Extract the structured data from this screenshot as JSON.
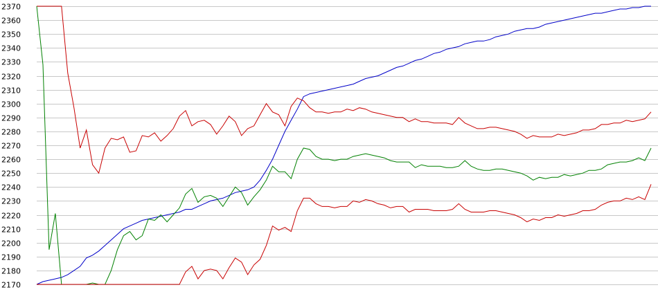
{
  "chart_data": {
    "type": "line",
    "title": "",
    "xlabel": "",
    "ylabel": "",
    "ylim": [
      2170,
      2370
    ],
    "yticks": [
      2170,
      2180,
      2190,
      2200,
      2210,
      2220,
      2230,
      2240,
      2250,
      2260,
      2270,
      2280,
      2290,
      2300,
      2310,
      2320,
      2330,
      2340,
      2350,
      2360,
      2370
    ],
    "grid": true,
    "legend": "none",
    "n_points": 100,
    "series": [
      {
        "color": "#0000c8",
        "values": [
          2170,
          2172,
          2173,
          2174,
          2175,
          2177,
          2180,
          2183,
          2189,
          2191,
          2194,
          2198,
          2202,
          2206,
          2210,
          2212,
          2214,
          2216,
          2217,
          2218,
          2219,
          2220,
          2221,
          2222,
          2224,
          2224,
          2226,
          2228,
          2230,
          2231,
          2232,
          2234,
          2236,
          2237,
          2238,
          2240,
          2245,
          2252,
          2260,
          2270,
          2280,
          2288,
          2296,
          2305,
          2307,
          2308,
          2309,
          2310,
          2311,
          2312,
          2313,
          2314,
          2316,
          2318,
          2319,
          2320,
          2322,
          2324,
          2326,
          2327,
          2329,
          2331,
          2332,
          2334,
          2336,
          2337,
          2339,
          2340,
          2341,
          2343,
          2344,
          2345,
          2345,
          2346,
          2348,
          2349,
          2350,
          2352,
          2353,
          2354,
          2354,
          2355,
          2357,
          2358,
          2359,
          2360,
          2361,
          2362,
          2363,
          2364,
          2365,
          2365,
          2366,
          2367,
          2368,
          2368,
          2369,
          2369,
          2370,
          2370
        ]
      },
      {
        "color": "#c80000",
        "values": [
          2370,
          2370,
          2370,
          2370,
          2370,
          2322,
          2297,
          2268,
          2281,
          2256,
          2250,
          2268,
          2275,
          2274,
          2276,
          2265,
          2266,
          2277,
          2276,
          2279,
          2273,
          2277,
          2282,
          2291,
          2295,
          2284,
          2287,
          2288,
          2285,
          2278,
          2284,
          2291,
          2287,
          2277,
          2282,
          2284,
          2292,
          2300,
          2294,
          2292,
          2284,
          2298,
          2304,
          2302,
          2297,
          2294,
          2294,
          2293,
          2294,
          2294,
          2296,
          2295,
          2297,
          2296,
          2294,
          2293,
          2292,
          2291,
          2290,
          2290,
          2287,
          2289,
          2287,
          2287,
          2286,
          2286,
          2286,
          2285,
          2290,
          2286,
          2284,
          2282,
          2282,
          2283,
          2283,
          2282,
          2281,
          2280,
          2278,
          2275,
          2277,
          2276,
          2276,
          2276,
          2278,
          2277,
          2278,
          2279,
          2281,
          2281,
          2282,
          2285,
          2285,
          2286,
          2286,
          2288,
          2287,
          2288,
          2289,
          2294
        ]
      },
      {
        "color": "#008000",
        "values": [
          2370,
          2328,
          2195,
          2221,
          2170,
          2170,
          2170,
          2170,
          2170,
          2171,
          2170,
          2170,
          2180,
          2195,
          2205,
          2208,
          2202,
          2205,
          2217,
          2216,
          2220,
          2215,
          2220,
          2225,
          2235,
          2239,
          2229,
          2233,
          2234,
          2232,
          2226,
          2233,
          2240,
          2236,
          2227,
          2233,
          2238,
          2245,
          2255,
          2251,
          2251,
          2246,
          2260,
          2268,
          2267,
          2262,
          2260,
          2260,
          2259,
          2260,
          2260,
          2262,
          2263,
          2264,
          2263,
          2262,
          2261,
          2259,
          2258,
          2258,
          2258,
          2254,
          2256,
          2255,
          2255,
          2255,
          2254,
          2254,
          2255,
          2259,
          2255,
          2253,
          2252,
          2252,
          2253,
          2253,
          2252,
          2251,
          2250,
          2248,
          2245,
          2247,
          2246,
          2247,
          2247,
          2249,
          2248,
          2249,
          2250,
          2252,
          2252,
          2253,
          2256,
          2257,
          2258,
          2258,
          2259,
          2261,
          2259,
          2268
        ]
      },
      {
        "color": "#c80000",
        "values": [
          2170,
          2170,
          2170,
          2170,
          2170,
          2170,
          2170,
          2170,
          2170,
          2170,
          2170,
          2170,
          2170,
          2170,
          2170,
          2170,
          2170,
          2170,
          2170,
          2170,
          2170,
          2170,
          2170,
          2170,
          2179,
          2183,
          2174,
          2180,
          2181,
          2180,
          2174,
          2182,
          2189,
          2186,
          2177,
          2184,
          2188,
          2198,
          2212,
          2209,
          2211,
          2208,
          2223,
          2232,
          2232,
          2228,
          2226,
          2226,
          2225,
          2226,
          2226,
          2230,
          2229,
          2231,
          2230,
          2228,
          2227,
          2225,
          2226,
          2226,
          2222,
          2224,
          2224,
          2224,
          2223,
          2223,
          2223,
          2224,
          2228,
          2224,
          2222,
          2222,
          2222,
          2223,
          2223,
          2222,
          2221,
          2220,
          2218,
          2215,
          2217,
          2216,
          2218,
          2218,
          2220,
          2219,
          2220,
          2221,
          2223,
          2223,
          2224,
          2227,
          2229,
          2230,
          2230,
          2232,
          2231,
          2233,
          2231,
          2242
        ]
      }
    ]
  }
}
